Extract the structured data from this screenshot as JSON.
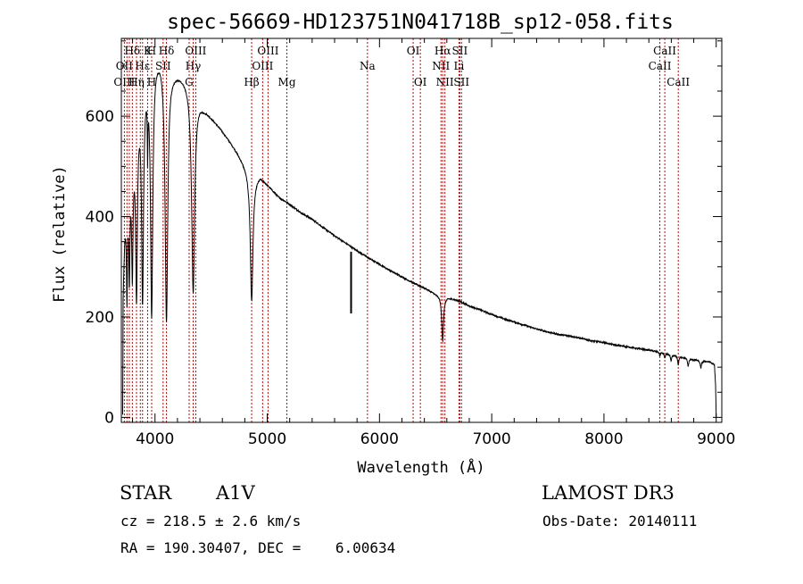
{
  "chart_data": {
    "type": "line",
    "title": "spec-56669-HD123751N041718B_sp12-058.fits",
    "xlabel": "Wavelength (Å)",
    "ylabel": "Flux (relative)",
    "xlim": [
      3700,
      9050
    ],
    "ylim": [
      -10,
      755
    ],
    "xticks": [
      4000,
      5000,
      6000,
      7000,
      8000,
      9000
    ],
    "xtick_labels": [
      "4000",
      "5000",
      "6000",
      "7000",
      "8000",
      "9000"
    ],
    "yticks": [
      0,
      200,
      400,
      600
    ],
    "ytick_labels": [
      "0",
      "200",
      "400",
      "600"
    ],
    "spectrum_color": "#000000",
    "line_marker_color": "#cc0000",
    "continuum": [
      [
        3712,
        5
      ],
      [
        3716,
        240
      ],
      [
        3722,
        300
      ],
      [
        3730,
        360
      ],
      [
        3740,
        400
      ],
      [
        3750,
        420
      ],
      [
        3760,
        450
      ],
      [
        3775,
        480
      ],
      [
        3790,
        500
      ],
      [
        3810,
        540
      ],
      [
        3830,
        580
      ],
      [
        3860,
        630
      ],
      [
        3890,
        660
      ],
      [
        3920,
        690
      ],
      [
        3960,
        715
      ],
      [
        4000,
        730
      ],
      [
        4050,
        730
      ],
      [
        4120,
        705
      ],
      [
        4160,
        692
      ],
      [
        4200,
        688
      ],
      [
        4250,
        682
      ],
      [
        4300,
        670
      ],
      [
        4380,
        640
      ],
      [
        4430,
        620
      ],
      [
        4500,
        600
      ],
      [
        4600,
        572
      ],
      [
        4700,
        540
      ],
      [
        4800,
        505
      ],
      [
        4860,
        482
      ],
      [
        4940,
        482
      ],
      [
        5000,
        465
      ],
      [
        5100,
        440
      ],
      [
        5200,
        425
      ],
      [
        5300,
        408
      ],
      [
        5400,
        395
      ],
      [
        5500,
        378
      ],
      [
        5600,
        362
      ],
      [
        5700,
        347
      ],
      [
        5800,
        332
      ],
      [
        5900,
        318
      ],
      [
        6000,
        305
      ],
      [
        6100,
        292
      ],
      [
        6200,
        280
      ],
      [
        6300,
        268
      ],
      [
        6400,
        258
      ],
      [
        6500,
        246
      ],
      [
        6600,
        240
      ],
      [
        6700,
        233
      ],
      [
        6800,
        222
      ],
      [
        6900,
        214
      ],
      [
        7000,
        205
      ],
      [
        7100,
        197
      ],
      [
        7200,
        190
      ],
      [
        7300,
        183
      ],
      [
        7400,
        176
      ],
      [
        7500,
        170
      ],
      [
        7600,
        165
      ],
      [
        7700,
        162
      ],
      [
        7800,
        157
      ],
      [
        7900,
        152
      ],
      [
        8000,
        149
      ],
      [
        8100,
        144
      ],
      [
        8200,
        141
      ],
      [
        8300,
        137
      ],
      [
        8400,
        134
      ],
      [
        8500,
        130
      ],
      [
        8600,
        125
      ],
      [
        8700,
        120
      ],
      [
        8800,
        115
      ],
      [
        8900,
        112
      ],
      [
        8950,
        110
      ],
      [
        8985,
        104
      ],
      [
        8995,
        60
      ],
      [
        9000,
        0
      ]
    ],
    "absorption": [
      {
        "center": 3750,
        "depth": 0.45,
        "width": 5
      },
      {
        "center": 3771,
        "depth": 0.42,
        "width": 6
      },
      {
        "center": 3798,
        "depth": 0.45,
        "width": 7
      },
      {
        "center": 3835,
        "depth": 0.6,
        "width": 9
      },
      {
        "center": 3889,
        "depth": 0.65,
        "width": 10
      },
      {
        "center": 3934,
        "depth": 0.2,
        "width": 3
      },
      {
        "center": 3970,
        "depth": 0.72,
        "width": 12
      },
      {
        "center": 4102,
        "depth": 0.73,
        "width": 14
      },
      {
        "center": 4340,
        "depth": 0.62,
        "width": 16
      },
      {
        "center": 4861,
        "depth": 0.52,
        "width": 14
      },
      {
        "center": 6563,
        "depth": 0.37,
        "width": 10
      },
      {
        "center": 8498,
        "depth": 0.06,
        "width": 5
      },
      {
        "center": 8542,
        "depth": 0.08,
        "width": 5
      },
      {
        "center": 8598,
        "depth": 0.11,
        "width": 6
      },
      {
        "center": 8662,
        "depth": 0.14,
        "width": 6
      },
      {
        "center": 8750,
        "depth": 0.13,
        "width": 7
      },
      {
        "center": 8863,
        "depth": 0.13,
        "width": 7
      }
    ],
    "glitch": {
      "wavelength": 5747,
      "from": 330,
      "to": 207
    },
    "spectral_lines": [
      {
        "label": "Hδ",
        "wavelength": 3798,
        "row": 1
      },
      {
        "label": "K",
        "wavelength": 3934,
        "row": 1
      },
      {
        "label": "H",
        "wavelength": 3970,
        "row": 1
      },
      {
        "label": "Hδ",
        "wavelength": 4102,
        "row": 1
      },
      {
        "label": "OIII",
        "wavelength": 4363,
        "row": 1
      },
      {
        "label": "OIII",
        "wavelength": 5007,
        "row": 1
      },
      {
        "label": "OI",
        "wavelength": 6300,
        "row": 1
      },
      {
        "label": "Hα",
        "wavelength": 6563,
        "row": 1
      },
      {
        "label": "SII",
        "wavelength": 6716,
        "row": 1
      },
      {
        "label": "CaII",
        "wavelength": 8542,
        "row": 1
      },
      {
        "label": "OII",
        "wavelength": 3727,
        "row": 2
      },
      {
        "label": "Hε",
        "wavelength": 3889,
        "row": 2
      },
      {
        "label": "SII",
        "wavelength": 4072,
        "row": 2
      },
      {
        "label": "Hγ",
        "wavelength": 4340,
        "row": 2
      },
      {
        "label": "OIII",
        "wavelength": 4959,
        "row": 2
      },
      {
        "label": "Na",
        "wavelength": 5893,
        "row": 2
      },
      {
        "label": "NII",
        "wavelength": 6548,
        "row": 2
      },
      {
        "label": "Li",
        "wavelength": 6708,
        "row": 2
      },
      {
        "label": "CaII",
        "wavelength": 8498,
        "row": 2
      },
      {
        "label": "OIII",
        "wavelength": 3727,
        "row": 3
      },
      {
        "label": "Hη",
        "wavelength": 3835,
        "row": 3
      },
      {
        "label": "H",
        "wavelength": 3970,
        "row": 3
      },
      {
        "label": "G",
        "wavelength": 4304,
        "row": 3
      },
      {
        "label": "Hβ",
        "wavelength": 4861,
        "row": 3
      },
      {
        "label": "Mg",
        "wavelength": 5175,
        "row": 3
      },
      {
        "label": "OI",
        "wavelength": 6364,
        "row": 3
      },
      {
        "label": "NII",
        "wavelength": 6583,
        "row": 3
      },
      {
        "label": "SII",
        "wavelength": 6731,
        "row": 3
      },
      {
        "label": "CaII",
        "wavelength": 8662,
        "row": 3
      }
    ],
    "extra_markers": [
      3750,
      3771,
      3869
    ]
  },
  "info": {
    "object_class": "STAR",
    "subclass": "A1V",
    "survey": "LAMOST DR3",
    "redshift_line": "cz = 218.5 ± 2.6 km/s",
    "obs_date": "Obs-Date: 20140111",
    "coords": "RA = 190.30407, DEC =    6.00634"
  }
}
